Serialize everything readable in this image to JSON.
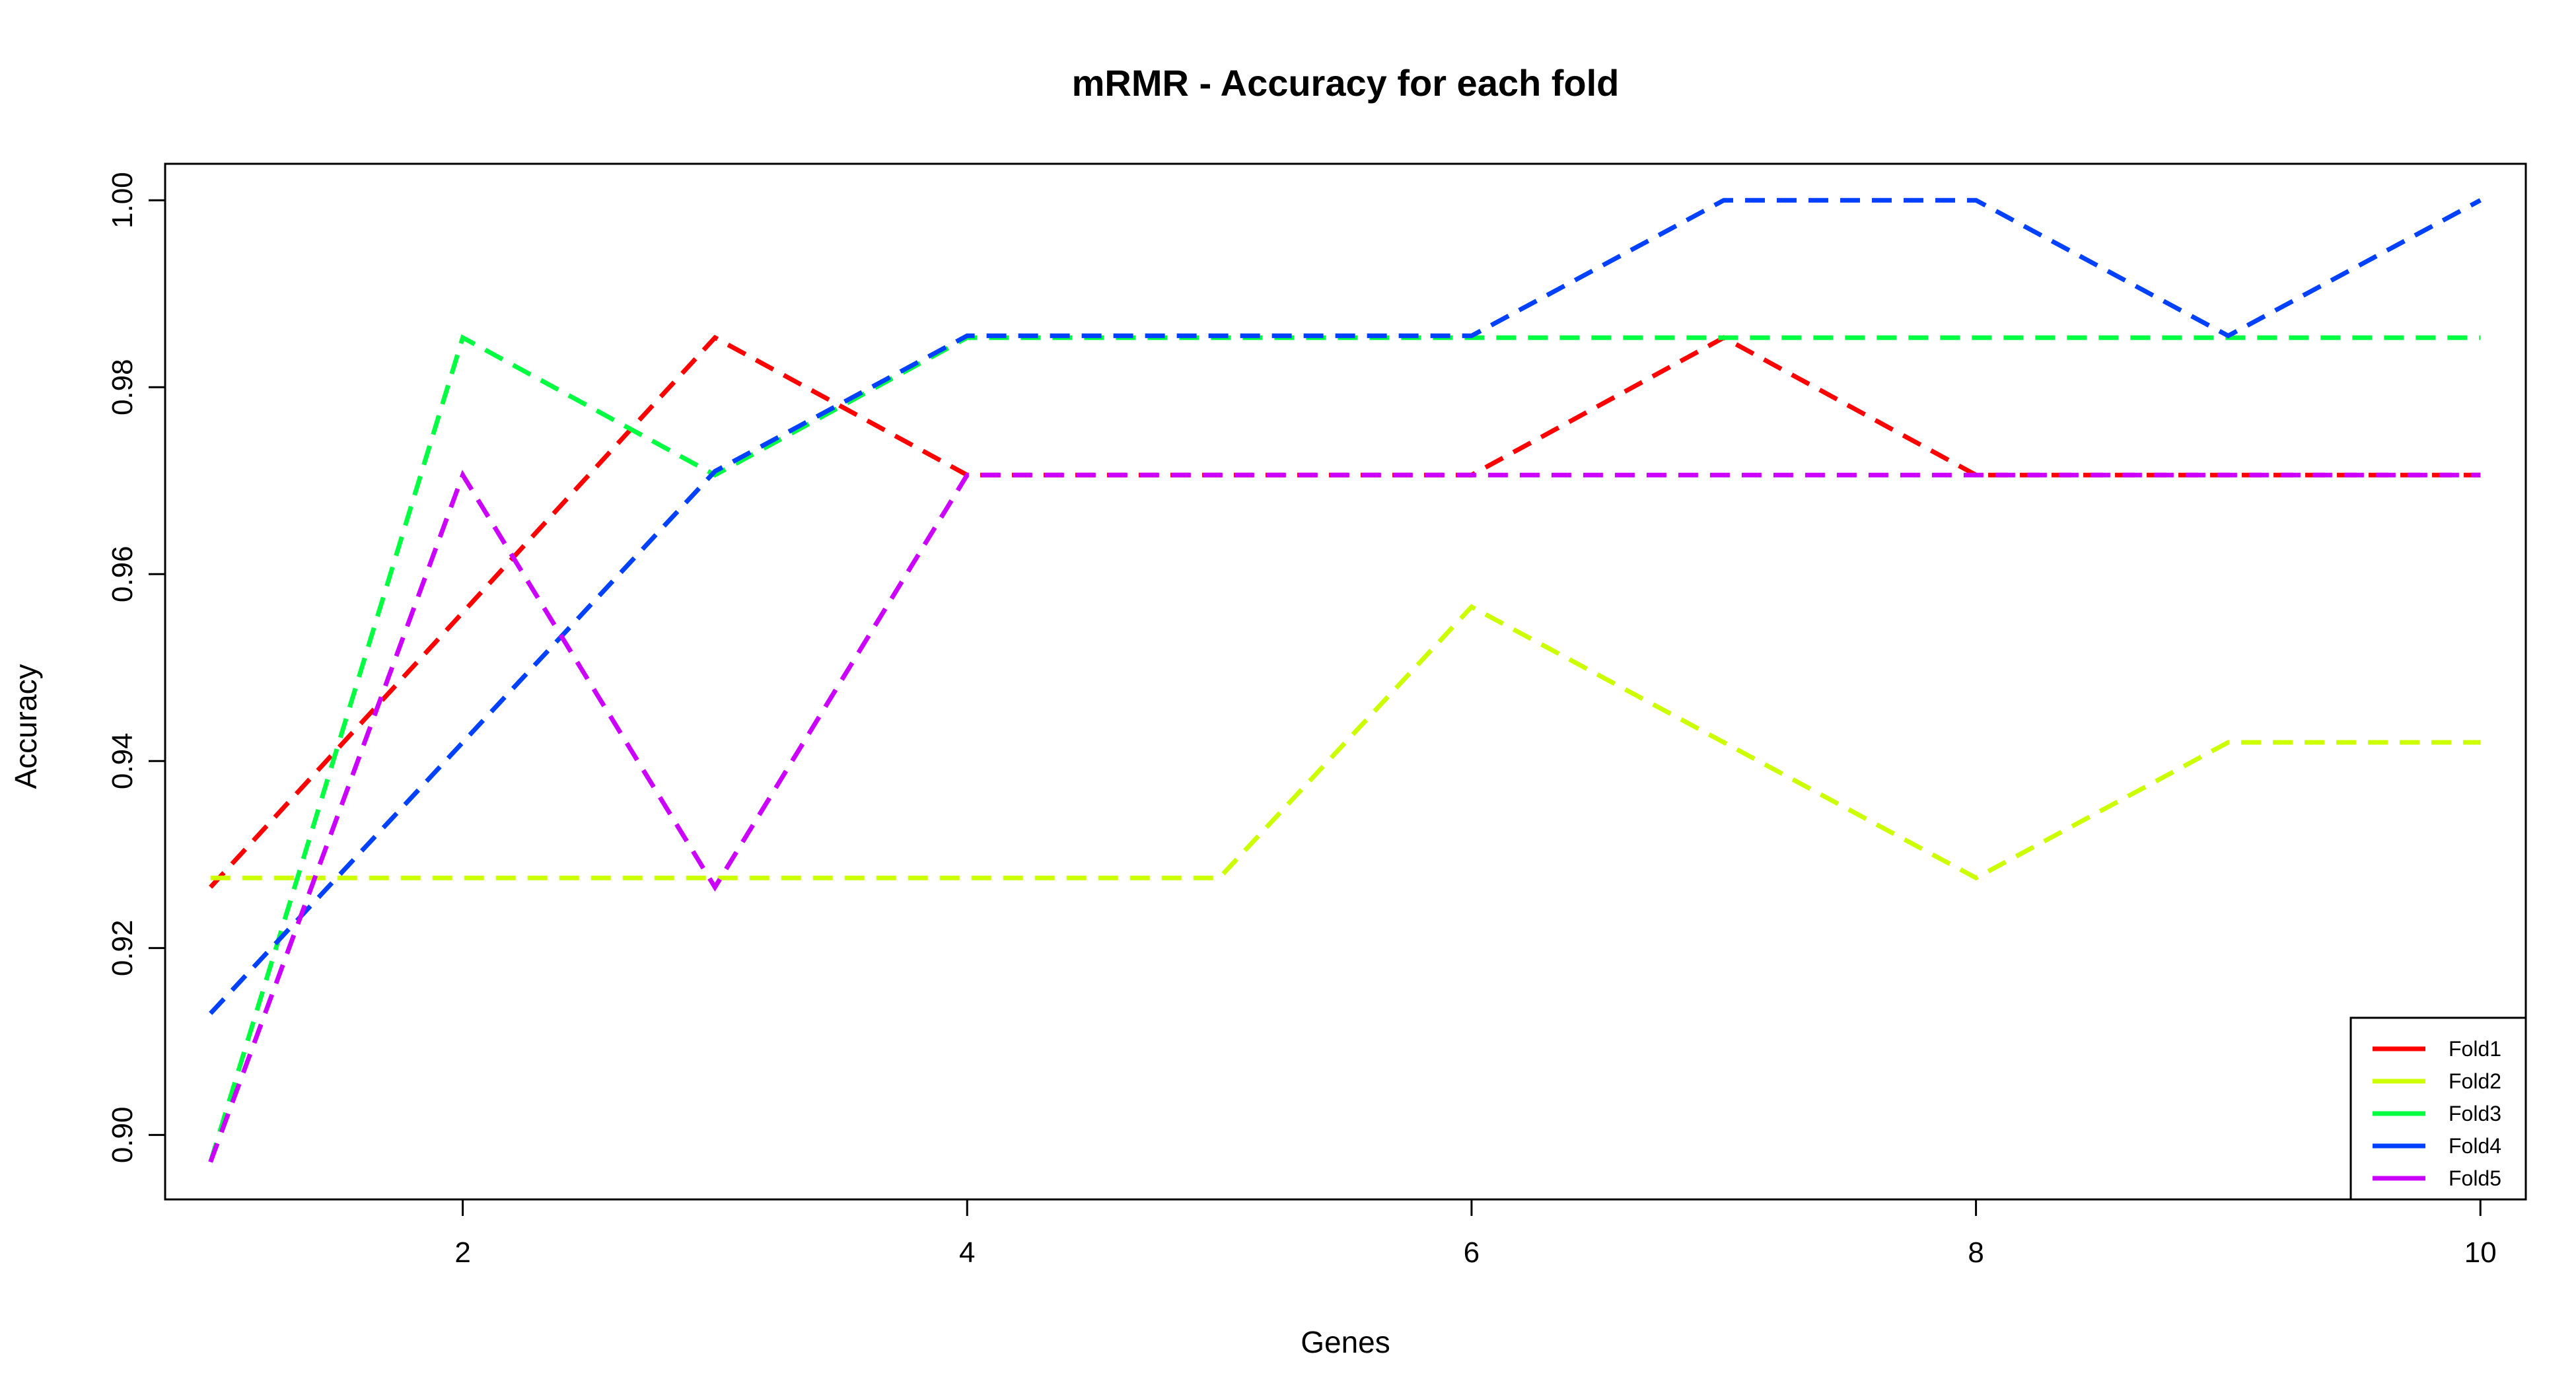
{
  "chart_data": {
    "type": "line",
    "title": "mRMR - Accuracy for each fold",
    "xlabel": "Genes",
    "ylabel": "Accuracy",
    "x": [
      1,
      2,
      3,
      4,
      5,
      6,
      7,
      8,
      9,
      10
    ],
    "xlim": [
      0.82,
      10.18
    ],
    "ylim": [
      0.8931,
      1.0039
    ],
    "x_ticks": [
      2,
      4,
      6,
      8,
      10
    ],
    "x_tick_labels": [
      "2",
      "4",
      "6",
      "8",
      "10"
    ],
    "y_ticks": [
      0.9,
      0.92,
      0.94,
      0.96,
      0.98,
      1.0
    ],
    "y_tick_labels": [
      "0.90",
      "0.92",
      "0.94",
      "0.96",
      "0.98",
      "1.00"
    ],
    "grid": false,
    "line_style": "dashed",
    "legend_position": "bottom-right",
    "series": [
      {
        "name": "Fold1",
        "color": "#ff0000",
        "values": [
          0.9265,
          0.9559,
          0.9853,
          0.9706,
          0.9706,
          0.9706,
          0.9853,
          0.9706,
          0.9706,
          0.9706
        ]
      },
      {
        "name": "Fold2",
        "color": "#ccff00",
        "values": [
          0.9275,
          0.9275,
          0.9275,
          0.9275,
          0.9275,
          0.9565,
          0.942,
          0.9275,
          0.942,
          0.942
        ]
      },
      {
        "name": "Fold3",
        "color": "#00ff40",
        "values": [
          0.8971,
          0.9853,
          0.9706,
          0.9853,
          0.9853,
          0.9853,
          0.9853,
          0.9853,
          0.9853,
          0.9853
        ]
      },
      {
        "name": "Fold4",
        "color": "#0040ff",
        "values": [
          0.913,
          0.942,
          0.971,
          0.9855,
          0.9855,
          0.9855,
          1.0,
          1.0,
          0.9855,
          1.0
        ]
      },
      {
        "name": "Fold5",
        "color": "#cc00ff",
        "values": [
          0.8971,
          0.9706,
          0.9265,
          0.9706,
          0.9706,
          0.9706,
          0.9706,
          0.9706,
          0.9706,
          0.9706
        ]
      }
    ]
  }
}
